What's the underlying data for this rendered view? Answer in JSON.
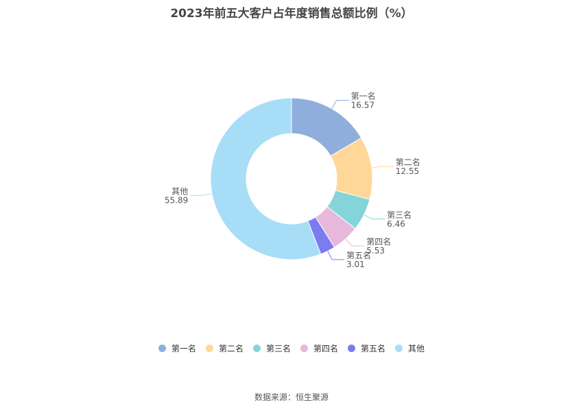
{
  "chart_data": {
    "type": "pie",
    "title": "2023年前五大客户占年度销售总额比例（%）",
    "categories": [
      "第一名",
      "第二名",
      "第三名",
      "第四名",
      "第五名",
      "其他"
    ],
    "values": [
      16.57,
      12.55,
      6.46,
      5.53,
      3.01,
      55.89
    ],
    "value_labels": [
      "16.57",
      "12.55",
      "6.46",
      "5.53",
      "3.01",
      "55.89"
    ],
    "colors": [
      "#8FAEDB",
      "#FFD899",
      "#85D4D9",
      "#E6B9DC",
      "#7B7BF2",
      "#A8DDF8"
    ],
    "donut": true,
    "legend_position": "bottom"
  },
  "source": "数据来源：恒生聚源"
}
